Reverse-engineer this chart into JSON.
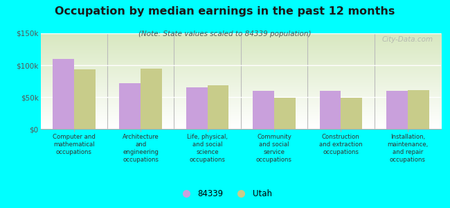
{
  "title": "Occupation by median earnings in the past 12 months",
  "subtitle": "(Note: State values scaled to 84339 population)",
  "background_color": "#00FFFF",
  "categories": [
    "Computer and\nmathematical\noccupations",
    "Architecture\nand\nengineering\noccupations",
    "Life, physical,\nand social\nscience\noccupations",
    "Community\nand social\nservice\noccupations",
    "Construction\nand extraction\noccupations",
    "Installation,\nmaintenance,\nand repair\noccupations"
  ],
  "values_84339": [
    110000,
    72000,
    65000,
    60000,
    60000,
    60000
  ],
  "values_utah": [
    93000,
    95000,
    68000,
    49000,
    49000,
    61000
  ],
  "color_84339": "#c9a0dc",
  "color_utah": "#c8cc8a",
  "bar_width": 0.32,
  "ylim": [
    0,
    150000
  ],
  "yticks": [
    0,
    50000,
    100000,
    150000
  ],
  "ytick_labels": [
    "$0",
    "$50k",
    "$100k",
    "$150k"
  ],
  "legend_84339": "84339",
  "legend_utah": "Utah",
  "watermark": "City-Data.com"
}
